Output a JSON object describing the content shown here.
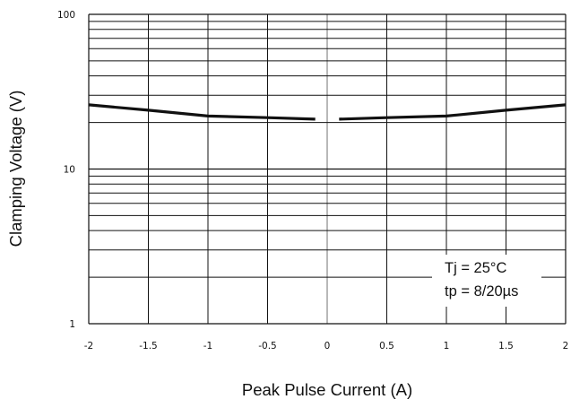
{
  "chart_data": {
    "type": "line",
    "title": "",
    "xlabel": "Peak Pulse Current (A)",
    "ylabel": "Clamping Voltage (V)",
    "xlim": [
      -2,
      2
    ],
    "ylim": [
      1,
      100
    ],
    "y_scale": "log",
    "grid": true,
    "x_ticks": [
      "-2",
      "-1.5",
      "-1",
      "-0.5",
      "0",
      "0.5",
      "1",
      "1.5",
      "2"
    ],
    "y_ticks": [
      "1",
      "10",
      "100"
    ],
    "series": [
      {
        "color": "#111111",
        "segments": [
          {
            "x": [
              -2,
              -1.5,
              -1,
              -0.5,
              -0.1
            ],
            "y": [
              26,
              24,
              22,
              21.5,
              21
            ]
          },
          {
            "x": [
              0.1,
              0.5,
              1,
              1.5,
              2
            ],
            "y": [
              21,
              21.5,
              22,
              24,
              26
            ]
          }
        ]
      }
    ],
    "annotations": [
      "Tj = 25°C",
      "tp = 8/20µs"
    ]
  }
}
